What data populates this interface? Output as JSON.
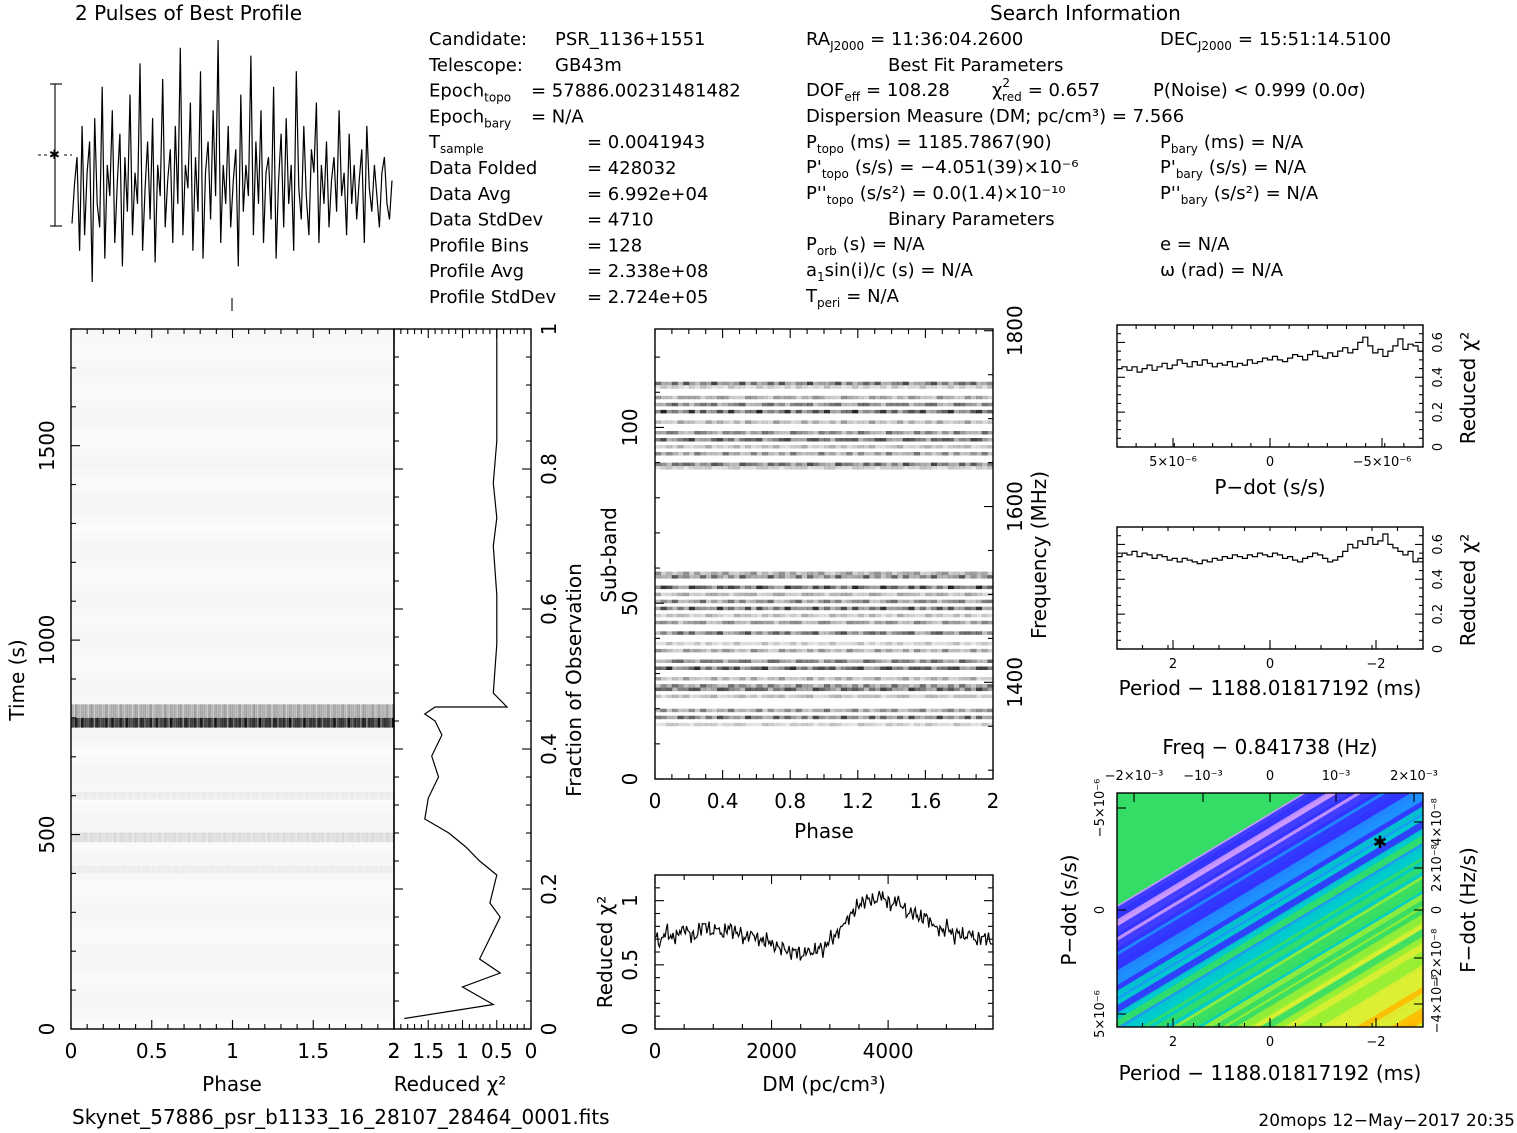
{
  "header": {
    "profile_title": "2 Pulses of Best Profile",
    "search_title": "Search Information",
    "best_fit_title": "Best Fit Parameters",
    "binary_title": "Binary Parameters"
  },
  "info_left": [
    {
      "label": "Candidate:",
      "value": "PSR_1136+1551"
    },
    {
      "label": "Telescope:",
      "value": "GB43m"
    },
    {
      "label": "Epoch",
      "sub": "topo",
      "value": "= 57886.00231481482"
    },
    {
      "label": "Epoch",
      "sub": "bary",
      "value": "= N/A"
    },
    {
      "label": "T",
      "sub": "sample",
      "value": "=   0.0041943"
    },
    {
      "label": "Data Folded",
      "value": "=   428032"
    },
    {
      "label": "Data Avg",
      "value": "=   6.992e+04"
    },
    {
      "label": "Data StdDev",
      "value": "=   4710"
    },
    {
      "label": "Profile Bins",
      "value": "=   128"
    },
    {
      "label": "Profile Avg",
      "value": "=   2.338e+08"
    },
    {
      "label": "Profile StdDev",
      "value": "=   2.724e+05"
    }
  ],
  "info_mid": {
    "ra": {
      "label": "RA",
      "sub": "J2000",
      "value": "= 11:36:04.2600"
    },
    "dec": {
      "label": "DEC",
      "sub": "J2000",
      "value": "= 15:51:14.5100"
    },
    "dof": {
      "label": "DOF",
      "sub": "eff",
      "value": "= 108.28"
    },
    "chi2": {
      "label": "χ",
      "sup": "2",
      "sub": "red",
      "value": "= 0.657"
    },
    "pnoise": "P(Noise) < 0.999   (0.0σ)",
    "dm": "Dispersion Measure (DM; pc/cm³) = 7.566",
    "ptopo": {
      "label": "P",
      "sub": "topo",
      "value": "(ms) =  1185.7867(90)"
    },
    "pdtopo": {
      "label": "P'",
      "sub": "topo",
      "value": "(s/s) = −4.051(39)×10⁻⁶"
    },
    "pddtopo": {
      "label": "P''",
      "sub": "topo",
      "value": "(s/s²) = 0.0(1.4)×10⁻¹⁰"
    },
    "pbary": {
      "label": "P",
      "sub": "bary",
      "value": "(ms) = N/A"
    },
    "pdbary": {
      "label": "P'",
      "sub": "bary",
      "value": "(s/s) = N/A"
    },
    "pddbary": {
      "label": "P''",
      "sub": "bary",
      "value": "(s/s²) = N/A"
    },
    "porb": {
      "label": "P",
      "sub": "orb",
      "value": "(s) = N/A"
    },
    "a1": {
      "label": "a",
      "sub": "1",
      "value": "sin(i)/c (s) = N/A"
    },
    "tperi": {
      "label": "T",
      "sub": "peri",
      "value": "= N/A"
    },
    "ecc": "e = N/A",
    "omega": "ω (rad) = N/A"
  },
  "footer": {
    "filename": "Skynet_57886_psr_b1133_16_28107_28464_0001.fits",
    "stamp": "20mops 12−May−2017 20:35"
  },
  "chart_data": [
    {
      "id": "profile",
      "type": "line",
      "title": "2 Pulses of Best Profile",
      "x_range": [
        0,
        2
      ],
      "y": [
        0.45,
        0.55,
        0.62,
        0.38,
        0.7,
        0.42,
        0.58,
        0.66,
        0.3,
        0.72,
        0.5,
        0.44,
        0.8,
        0.36,
        0.6,
        0.52,
        0.74,
        0.4,
        0.56,
        0.68,
        0.34,
        0.62,
        0.48,
        0.78,
        0.42,
        0.58,
        0.5,
        0.86,
        0.38,
        0.54,
        0.66,
        0.46,
        0.72,
        0.35,
        0.6,
        0.52,
        0.82,
        0.44,
        0.56,
        0.64,
        0.4,
        0.7,
        0.5,
        0.9,
        0.42,
        0.6,
        0.54,
        0.76,
        0.38,
        0.62,
        0.48,
        0.84,
        0.36,
        0.58,
        0.66,
        0.46,
        0.74,
        0.52,
        0.92,
        0.4,
        0.6,
        0.5,
        0.7,
        0.44,
        0.56,
        0.64,
        0.34,
        0.78,
        0.48,
        0.6,
        0.52,
        0.88,
        0.42,
        0.66,
        0.5,
        0.74,
        0.4,
        0.58,
        0.62,
        0.46,
        0.8,
        0.36,
        0.56,
        0.68,
        0.44,
        0.72,
        0.5,
        0.6,
        0.38,
        0.84,
        0.54,
        0.46,
        0.7,
        0.52,
        0.42,
        0.64,
        0.58,
        0.76,
        0.4,
        0.6,
        0.5,
        0.66,
        0.44,
        0.56,
        0.62,
        0.48,
        0.74,
        0.52,
        0.58,
        0.42,
        0.68,
        0.5,
        0.6,
        0.46,
        0.56,
        0.64,
        0.4,
        0.7,
        0.54,
        0.48,
        0.6,
        0.52,
        0.44,
        0.58,
        0.62,
        0.5,
        0.46,
        0.56
      ]
    },
    {
      "id": "time_phase",
      "type": "heatmap",
      "xlabel": "Phase",
      "ylabel": "Time (s)",
      "xlim": [
        0,
        2
      ],
      "ylim": [
        0,
        1800
      ],
      "x_ticks": [
        "0",
        "0.5",
        "1",
        "1.5",
        "2"
      ],
      "y_ticks": [
        "0",
        "500",
        "1000",
        "1500"
      ],
      "bands": [
        {
          "t0": 775,
          "t1": 800,
          "intensity": 0.95
        },
        {
          "t0": 800,
          "t1": 835,
          "intensity": 0.35
        },
        {
          "t0": 480,
          "t1": 505,
          "intensity": 0.12
        },
        {
          "t0": 590,
          "t1": 610,
          "intensity": 0.06
        },
        {
          "t0": 400,
          "t1": 420,
          "intensity": 0.04
        }
      ]
    },
    {
      "id": "redchi_time",
      "type": "line",
      "xlabel": "Reduced χ²",
      "ylabel": "Fraction of Observation",
      "xlim": [
        2,
        0
      ],
      "ylim": [
        0,
        1
      ],
      "x_ticks": [
        "2",
        "1.5",
        "1",
        "0.5",
        "0"
      ],
      "y_ticks": [
        "0",
        "0.2",
        "0.4",
        "0.6",
        "0.8",
        "1"
      ],
      "x": [
        1.85,
        0.55,
        1.0,
        0.45,
        0.75,
        0.6,
        0.45,
        0.6,
        0.5,
        0.75,
        0.95,
        1.2,
        1.55,
        1.5,
        1.35,
        1.45,
        1.3,
        1.4,
        1.55,
        1.4,
        0.35,
        0.55,
        0.5,
        0.5,
        0.55,
        0.5,
        0.55,
        0.5,
        0.5,
        0.5,
        0.5
      ],
      "y": [
        0.015,
        0.035,
        0.06,
        0.08,
        0.1,
        0.13,
        0.16,
        0.18,
        0.22,
        0.24,
        0.26,
        0.28,
        0.3,
        0.33,
        0.36,
        0.39,
        0.42,
        0.44,
        0.45,
        0.46,
        0.46,
        0.48,
        0.55,
        0.62,
        0.69,
        0.73,
        0.78,
        0.84,
        0.9,
        0.96,
        1.0
      ]
    },
    {
      "id": "subband_phase",
      "type": "heatmap",
      "xlabel": "Phase",
      "ylabel": "Sub-band",
      "right_label": "Frequency (MHz)",
      "xlim": [
        0,
        2
      ],
      "ylim": [
        0,
        128
      ],
      "x_ticks": [
        "0",
        "0.4",
        "0.8",
        "1.2",
        "1.6",
        "2"
      ],
      "y_ticks": [
        "0",
        "50",
        "100"
      ],
      "freq_ticks": [
        "1400",
        "1600",
        "1800"
      ],
      "active_subbands": [
        15,
        17,
        19,
        23,
        25,
        26,
        28,
        31,
        33,
        36,
        38,
        41,
        44,
        46,
        48,
        50,
        52,
        54,
        57,
        58,
        88,
        89,
        92,
        94,
        96,
        98,
        101,
        104,
        106,
        108,
        111,
        112
      ]
    },
    {
      "id": "pdot_chi",
      "type": "line",
      "xlabel": "P−dot (s/s)",
      "ylabel": "Reduced χ²",
      "xlim": [
        8e-06,
        -8e-06
      ],
      "ylim": [
        0,
        0.7
      ],
      "x_ticks": [
        "5×10⁻⁶",
        "0",
        "−5×10⁻⁶"
      ],
      "y_ticks": [
        "0",
        "0.2",
        "0.4",
        "0.6"
      ],
      "y": [
        0.45,
        0.46,
        0.44,
        0.46,
        0.43,
        0.45,
        0.47,
        0.44,
        0.46,
        0.48,
        0.45,
        0.47,
        0.5,
        0.48,
        0.46,
        0.49,
        0.47,
        0.5,
        0.48,
        0.46,
        0.48,
        0.47,
        0.49,
        0.46,
        0.48,
        0.47,
        0.5,
        0.48,
        0.49,
        0.51,
        0.5,
        0.52,
        0.5,
        0.49,
        0.51,
        0.53,
        0.52,
        0.5,
        0.53,
        0.55,
        0.52,
        0.51,
        0.54,
        0.52,
        0.55,
        0.57,
        0.54,
        0.56,
        0.6,
        0.63,
        0.58,
        0.54,
        0.56,
        0.52,
        0.55,
        0.58,
        0.62,
        0.56,
        0.59,
        0.58,
        0.55
      ]
    },
    {
      "id": "period_chi",
      "type": "line",
      "xlabel": "Period − 1188.01817192 (ms)",
      "ylabel": "Reduced χ²",
      "xlim": [
        3.2,
        -3.2
      ],
      "ylim": [
        0,
        0.7
      ],
      "x_ticks": [
        "2",
        "0",
        "−2"
      ],
      "y_ticks": [
        "0",
        "0.2",
        "0.4",
        "0.6"
      ],
      "y": [
        0.53,
        0.55,
        0.54,
        0.56,
        0.53,
        0.55,
        0.54,
        0.52,
        0.54,
        0.53,
        0.51,
        0.52,
        0.5,
        0.52,
        0.51,
        0.5,
        0.49,
        0.51,
        0.5,
        0.52,
        0.51,
        0.53,
        0.52,
        0.54,
        0.53,
        0.52,
        0.54,
        0.53,
        0.55,
        0.54,
        0.53,
        0.55,
        0.54,
        0.52,
        0.53,
        0.51,
        0.5,
        0.52,
        0.53,
        0.55,
        0.54,
        0.52,
        0.5,
        0.51,
        0.53,
        0.56,
        0.6,
        0.58,
        0.62,
        0.6,
        0.64,
        0.6,
        0.62,
        0.66,
        0.6,
        0.58,
        0.56,
        0.54,
        0.56,
        0.5,
        0.52
      ]
    },
    {
      "id": "dm_chi",
      "type": "line",
      "xlabel": "DM (pc/cm³)",
      "ylabel": "Reduced χ²",
      "xlim": [
        0,
        5800
      ],
      "ylim": [
        0,
        1.2
      ],
      "x_ticks": [
        "0",
        "2000",
        "4000"
      ],
      "y_ticks": [
        "0",
        "0.5",
        "1"
      ],
      "y": [
        0.72,
        0.68,
        0.78,
        0.7,
        0.74,
        0.8,
        0.76,
        0.7,
        0.78,
        0.82,
        0.74,
        0.78,
        0.72,
        0.8,
        0.76,
        0.74,
        0.7,
        0.76,
        0.72,
        0.68,
        0.7,
        0.66,
        0.64,
        0.62,
        0.58,
        0.62,
        0.56,
        0.6,
        0.58,
        0.64,
        0.62,
        0.7,
        0.72,
        0.8,
        0.86,
        0.9,
        0.96,
        1.0,
        1.02,
        0.98,
        1.04,
        1.0,
        0.96,
        1.0,
        0.94,
        0.9,
        0.92,
        0.86,
        0.88,
        0.84,
        0.8,
        0.76,
        0.8,
        0.72,
        0.76,
        0.7,
        0.74,
        0.68,
        0.72,
        0.7,
        0.66
      ]
    },
    {
      "id": "ppdot",
      "type": "heatmap",
      "title": "Freq − 0.841738 (Hz)",
      "xlabel": "Period − 1188.01817192 (ms)",
      "ylabel": "P−dot (s/s)",
      "right_label": "F−dot (Hz/s)",
      "x_ticks": [
        "2",
        "0",
        "−2"
      ],
      "top_ticks": [
        "−2×10⁻³",
        "−10⁻³",
        "0",
        "10⁻³",
        "2×10⁻³"
      ],
      "y_ticks": [
        "5×10⁻⁶",
        "0",
        "−5×10⁻⁶"
      ],
      "right_ticks": [
        "−4×10⁻⁸",
        "−2×10⁻⁸",
        "0",
        "2×10⁻⁸",
        "4×10⁻⁸"
      ],
      "best": {
        "period": -2.2,
        "pdot": -4.05e-06
      },
      "colors": [
        "#cc99ff",
        "#3333ff",
        "#1e90ff",
        "#00cccc",
        "#33dd66",
        "#99ee33",
        "#ddee33",
        "#ffbb00",
        "#ff6600"
      ]
    }
  ]
}
